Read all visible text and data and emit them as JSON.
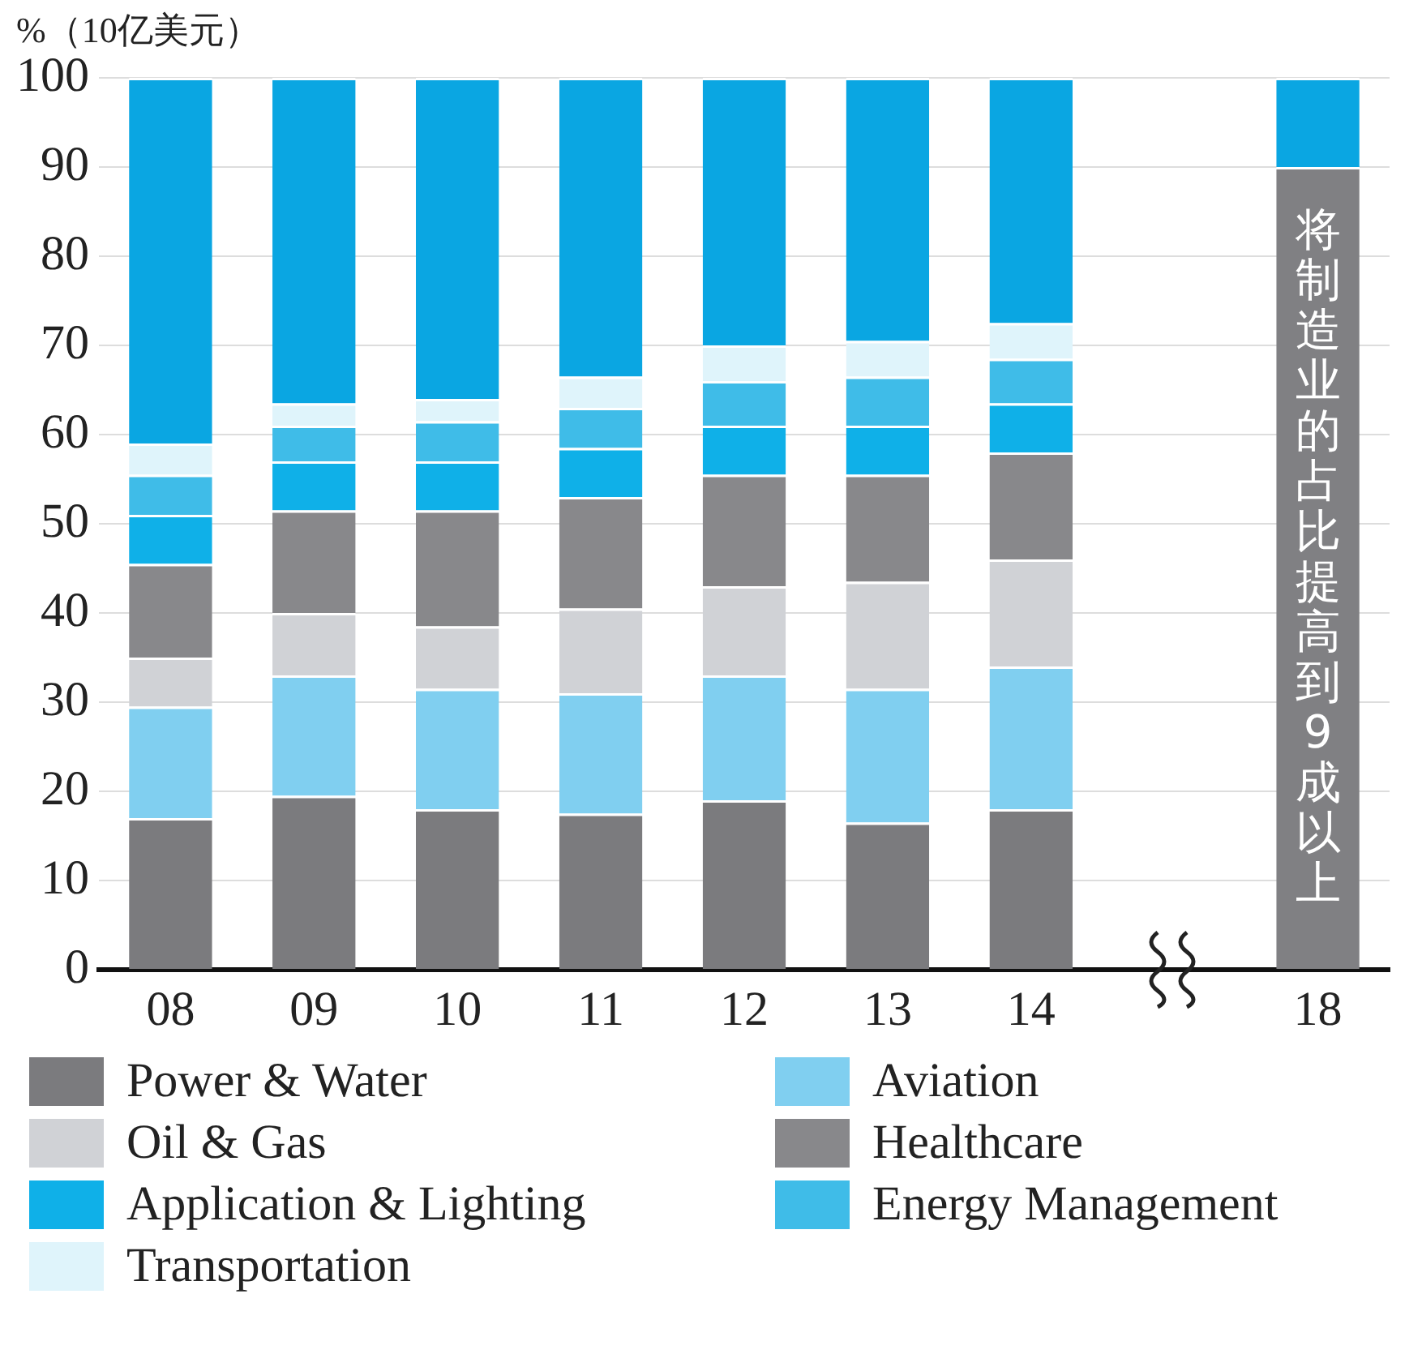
{
  "chart_data": {
    "type": "bar",
    "stacked": true,
    "ylabel": "%（10亿美元）",
    "categories": [
      "08",
      "09",
      "10",
      "11",
      "12",
      "13",
      "14",
      null,
      "18"
    ],
    "series": [
      {
        "name": "Power & Water",
        "color": "#7b7b7e",
        "values": [
          17,
          19.5,
          18,
          17.5,
          19,
          16.5,
          18,
          null,
          null
        ]
      },
      {
        "name": "Aviation",
        "color": "#80cff0",
        "values": [
          12.5,
          13.5,
          13.5,
          13.5,
          14,
          15,
          16,
          null,
          null
        ]
      },
      {
        "name": "Oil & Gas",
        "color": "#d0d2d6",
        "values": [
          5.5,
          7,
          7,
          9.5,
          10,
          12,
          12,
          null,
          null
        ]
      },
      {
        "name": "Healthcare",
        "color": "#88888b",
        "values": [
          10.5,
          11.5,
          13,
          12.5,
          12.5,
          12,
          12,
          null,
          null
        ]
      },
      {
        "name": "Application & Lighting",
        "color": "#0fb0e8",
        "values": [
          5.5,
          5.5,
          5.5,
          5.5,
          5.5,
          5.5,
          5.5,
          null,
          null
        ]
      },
      {
        "name": "Energy Management",
        "color": "#3fbce8",
        "values": [
          4.5,
          4,
          4.5,
          4.5,
          5,
          5.5,
          5,
          null,
          null
        ]
      },
      {
        "name": "Transportation",
        "color": "#dff4fb",
        "values": [
          3.5,
          2.5,
          2.5,
          3.5,
          4,
          4,
          4,
          null,
          null
        ]
      },
      {
        "color": "#808083",
        "values": [
          null,
          null,
          null,
          null,
          null,
          null,
          null,
          null,
          90
        ]
      },
      {
        "color": "#0aa6e2",
        "values": [
          41,
          36.5,
          36,
          33.5,
          30,
          29.5,
          27.5,
          null,
          10
        ]
      }
    ],
    "ylim": [
      0,
      100
    ],
    "yticks": [
      0,
      10,
      20,
      30,
      40,
      50,
      60,
      70,
      80,
      90,
      100
    ],
    "grid": "y",
    "legend": "bottom",
    "annotations": [
      "将制造业的占比提高到9成以上"
    ]
  }
}
